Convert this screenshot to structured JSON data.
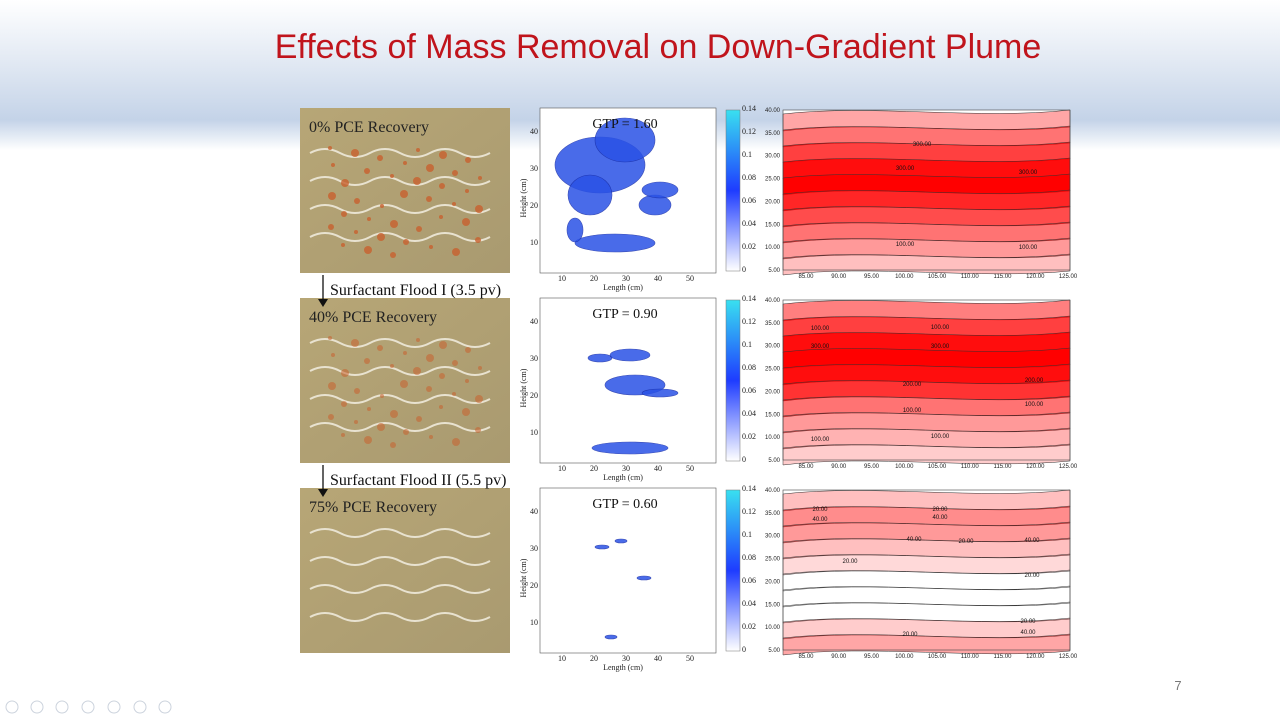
{
  "title": "Effects of Mass Removal on Down-Gradient Plume",
  "rows": [
    {
      "recovery": "0% PCE Recovery",
      "gtp": "GTP = 1.60",
      "contour_labels": [
        "300.00",
        "300.00",
        "300.00",
        "100.00",
        "100.00"
      ]
    },
    {
      "recovery": "40% PCE Recovery",
      "gtp": "GTP = 0.90",
      "contour_labels": [
        "100.00",
        "100.00",
        "300.00",
        "300.00",
        "200.00",
        "200.00",
        "100.00",
        "100.00",
        "100.00",
        "100.00"
      ]
    },
    {
      "recovery": "75% PCE Recovery",
      "gtp": "GTP = 0.60",
      "contour_labels": [
        "20.00",
        "40.00",
        "20.00",
        "40.00",
        "40.00",
        "20.00",
        "40.00",
        "20.00",
        "20.00",
        "20.00",
        "40.00",
        "20.00"
      ]
    }
  ],
  "floods": [
    "Surfactant Flood I (3.5 pv)",
    "Surfactant Flood II (5.5 pv)"
  ],
  "gtp_axes": {
    "x_label": "Length (cm)",
    "y_label": "Height (cm)",
    "x_ticks": [
      "10",
      "20",
      "30",
      "40",
      "50"
    ],
    "y_ticks": [
      "10",
      "20",
      "30",
      "40"
    ],
    "colorbar_ticks": [
      "0",
      "0.02",
      "0.04",
      "0.06",
      "0.08",
      "0.1",
      "0.12",
      "0.14"
    ]
  },
  "contour_axes": {
    "x_ticks": [
      "85.00",
      "90.00",
      "95.00",
      "100.00",
      "105.00",
      "110.00",
      "115.00",
      "120.00",
      "125.00"
    ],
    "y_ticks": [
      "5.00",
      "10.00",
      "15.00",
      "20.00",
      "25.00",
      "30.00",
      "35.00",
      "40.00"
    ]
  },
  "page_number": "7"
}
